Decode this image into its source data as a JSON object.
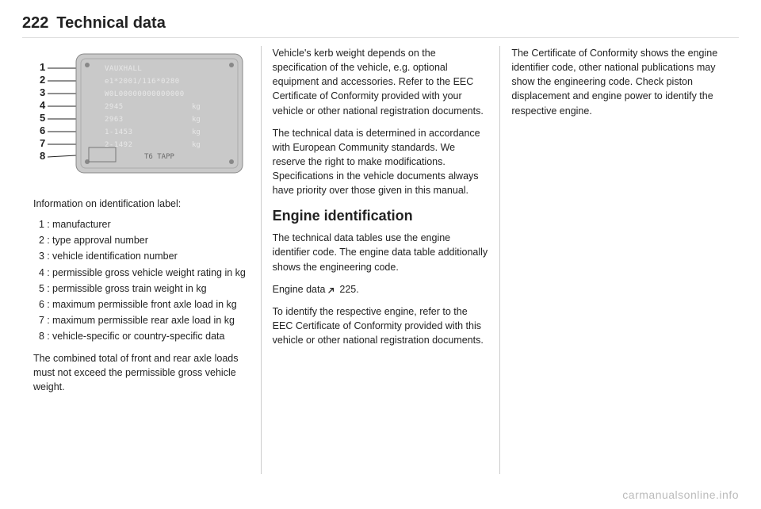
{
  "header": {
    "page_number": "222",
    "title": "Technical data"
  },
  "watermark": "carmanualsonline.info",
  "plate": {
    "bg": "#c9c9c9",
    "dark": "#5a5a5a",
    "text_color": "#e8e8e8",
    "label_color": "#222222",
    "rows": [
      {
        "n": "1",
        "text": "VAUXHALL"
      },
      {
        "n": "2",
        "text": "e1*2001/116*0280"
      },
      {
        "n": "3",
        "text": "W0L00000000000000"
      },
      {
        "n": "4",
        "text": "2945",
        "unit": "kg"
      },
      {
        "n": "5",
        "text": "2963",
        "unit": "kg"
      },
      {
        "n": "6",
        "text": "1-1453",
        "unit": "kg"
      },
      {
        "n": "7",
        "text": "2-1492",
        "unit": "kg"
      },
      {
        "n": "8",
        "text": "",
        "unit": ""
      }
    ],
    "footer": "T6  TAPP"
  },
  "col1": {
    "caption": "Information on identification label:",
    "defs": [
      {
        "n": "1",
        "t": "manufacturer"
      },
      {
        "n": "2",
        "t": "type approval number"
      },
      {
        "n": "3",
        "t": "vehicle identification number"
      },
      {
        "n": "4",
        "t": "permissible gross vehicle weight rating in kg"
      },
      {
        "n": "5",
        "t": "permissible gross train weight in kg"
      },
      {
        "n": "6",
        "t": "maximum permissible front axle load in kg"
      },
      {
        "n": "7",
        "t": "maximum permissible rear axle load in kg"
      },
      {
        "n": "8",
        "t": "vehicle-specific or country-specific data"
      }
    ],
    "note": "The combined total of front and rear axle loads must not exceed the permissible gross vehicle weight."
  },
  "col2": {
    "p1": "Vehicle's kerb weight depends on the specification of the vehicle, e.g. optional equipment and accessories. Refer to the EEC Certificate of Conformity provided with your vehicle or other national registration documents.",
    "p2": "The technical data is determined in accordance with European Community standards. We reserve the right to make modifications. Specifications in the vehicle documents always have priority over those given in this manual.",
    "h2": "Engine identification",
    "p3": "The technical data tables use the engine identifier code. The engine data table additionally shows the engineering code.",
    "ref_label": "Engine data",
    "ref_page": "225",
    "ref_suffix": ".",
    "p4": "To identify the respective engine, refer to the EEC Certificate of Conformity provided with this vehicle or other national registration documents."
  },
  "col3": {
    "p1": "The Certificate of Conformity shows the engine identifier code, other national publications may show the engineering code. Check piston displacement and engine power to identify the respective engine."
  }
}
